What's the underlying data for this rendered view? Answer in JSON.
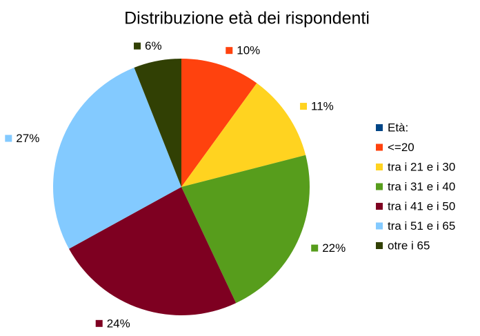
{
  "chart_data": {
    "type": "pie",
    "title": "Distribuzione età dei rispondenti",
    "series_name": "Età:",
    "series_color": "#004586",
    "categories": [
      "<=20",
      "tra i 21 e i 30",
      "tra i 31 e i 40",
      "tra i 41 e i 50",
      "tra i 51 e i 65",
      "otre i 65"
    ],
    "values": [
      10,
      11,
      22,
      24,
      27,
      6
    ],
    "value_labels": [
      "10%",
      "11%",
      "22%",
      "24%",
      "27%",
      "6%"
    ],
    "colors": [
      "#ff420e",
      "#ffd320",
      "#579d1c",
      "#7e0021",
      "#83caff",
      "#314004"
    ],
    "legend": "right"
  }
}
